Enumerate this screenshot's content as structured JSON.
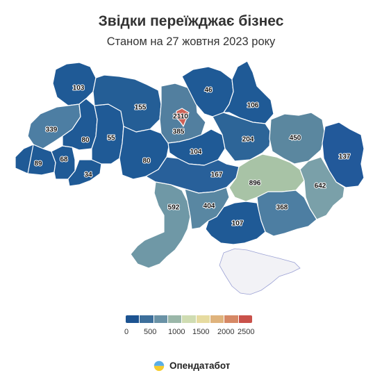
{
  "title": "Звідки переїжджає бізнес",
  "subtitle": "Станом на 27 жовтня 2023 року",
  "legend": {
    "ticks": [
      "0",
      "500",
      "1000",
      "1500",
      "2000",
      "2500"
    ],
    "colors": [
      "#1c5391",
      "#3d6f9b",
      "#6a92a6",
      "#9ab7a9",
      "#cfdcb2",
      "#e6dba0",
      "#dfb37c",
      "#d68865",
      "#c9514a"
    ]
  },
  "brand": {
    "name": "Опендатабот"
  },
  "colors": {
    "crimea": "#f2f2f6",
    "crimea_border": "#9aa0d4"
  },
  "regions": [
    {
      "id": "volyn",
      "value": "89",
      "color": "#1f5a96"
    },
    {
      "id": "rivne",
      "value": "103",
      "color": "#1f5a96"
    },
    {
      "id": "lviv",
      "value": "339",
      "color": "#4d7ea3"
    },
    {
      "id": "zakarpattia",
      "value": "89",
      "color": "#1f5a96"
    },
    {
      "id": "ivano-frankivsk",
      "value": "68",
      "color": "#1f5a96"
    },
    {
      "id": "ternopil",
      "value": "80",
      "color": "#1f5a96"
    },
    {
      "id": "chernivtsi",
      "value": "34",
      "color": "#1f5a96"
    },
    {
      "id": "khmelnytskyi",
      "value": "55",
      "color": "#1f5a96"
    },
    {
      "id": "zhytomyr",
      "value": "155",
      "color": "#245e96"
    },
    {
      "id": "vinnytsia",
      "value": "80",
      "color": "#1f5a96"
    },
    {
      "id": "kyiv-oblast",
      "value": "385",
      "color": "#527f9f"
    },
    {
      "id": "kyiv-city",
      "value": "2110",
      "color": "#cd6157"
    },
    {
      "id": "chernihiv",
      "value": "46",
      "color": "#1f5a96"
    },
    {
      "id": "sumy",
      "value": "106",
      "color": "#1f5a96"
    },
    {
      "id": "cherkasy",
      "value": "104",
      "color": "#1f5a96"
    },
    {
      "id": "poltava",
      "value": "204",
      "color": "#2d6598"
    },
    {
      "id": "kharkiv",
      "value": "450",
      "color": "#5b879f"
    },
    {
      "id": "kirovohrad",
      "value": "167",
      "color": "#28609a"
    },
    {
      "id": "luhansk",
      "value": "137",
      "color": "#22599a"
    },
    {
      "id": "dnipro",
      "value": "896",
      "color": "#a8c3a6"
    },
    {
      "id": "donetsk",
      "value": "642",
      "color": "#7aa0a9"
    },
    {
      "id": "odesa",
      "value": "592",
      "color": "#6f98a6"
    },
    {
      "id": "mykolaiv",
      "value": "404",
      "color": "#5987a2"
    },
    {
      "id": "zaporizhzhia",
      "value": "368",
      "color": "#4d7ea2"
    },
    {
      "id": "kherson",
      "value": "107",
      "color": "#1f5a96"
    }
  ]
}
